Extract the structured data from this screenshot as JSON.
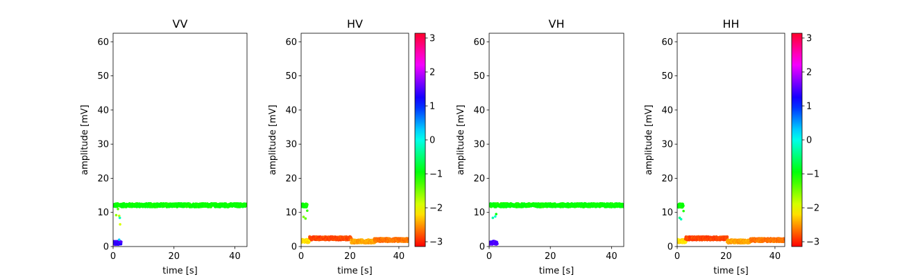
{
  "chart_data": [
    {
      "type": "scatter",
      "title": "VV",
      "xlabel": "time [s]",
      "ylabel": "amplitude [mV]",
      "xlim": [
        0,
        44
      ],
      "ylim": [
        0,
        62.5
      ],
      "xticks": [
        "0",
        "20",
        "40"
      ],
      "yticks": [
        "0",
        "10",
        "20",
        "30",
        "40",
        "50",
        "60"
      ],
      "colorbar": false,
      "segments": [
        {
          "x_start": 0.2,
          "x_end": 44,
          "amplitude": 12.1,
          "phase": -1.0
        },
        {
          "x_start": 0.2,
          "x_end": 2.6,
          "amplitude": 1.1,
          "phase": 1.4
        }
      ],
      "points": [
        {
          "x": 1.0,
          "y": 9.2,
          "phase": -1.6
        },
        {
          "x": 2.0,
          "y": 9.0,
          "phase": -1.8
        },
        {
          "x": 2.2,
          "y": 8.4,
          "phase": -0.2
        },
        {
          "x": 2.3,
          "y": 6.5,
          "phase": -1.9
        },
        {
          "x": 1.6,
          "y": 11.0,
          "phase": -1.3
        },
        {
          "x": 2.0,
          "y": 2.0,
          "phase": 0.3
        }
      ]
    },
    {
      "type": "scatter",
      "title": "HV",
      "xlabel": "time [s]",
      "ylabel": "amplitude [mV]",
      "xlim": [
        0,
        44
      ],
      "ylim": [
        0,
        62.5
      ],
      "xticks": [
        "0",
        "20",
        "40"
      ],
      "yticks": [
        "0",
        "10",
        "20",
        "30",
        "40",
        "50",
        "60"
      ],
      "colorbar": true,
      "segments": [
        {
          "x_start": 0.2,
          "x_end": 2.4,
          "amplitude": 12.0,
          "phase": -1.0
        },
        {
          "x_start": 0.2,
          "x_end": 3.5,
          "amplitude": 1.6,
          "phase": -2.2
        },
        {
          "x_start": 3.5,
          "x_end": 20.5,
          "amplitude": 2.4,
          "phase": -2.85
        },
        {
          "x_start": 20.5,
          "x_end": 30.0,
          "amplitude": 1.5,
          "phase": -2.45
        },
        {
          "x_start": 30.0,
          "x_end": 44,
          "amplitude": 1.9,
          "phase": -2.65
        }
      ],
      "points": [
        {
          "x": 1.0,
          "y": 8.7,
          "phase": -1.5
        },
        {
          "x": 1.8,
          "y": 8.2,
          "phase": -1.4
        },
        {
          "x": 2.5,
          "y": 10.5,
          "phase": -1.2
        }
      ]
    },
    {
      "type": "scatter",
      "title": "VH",
      "xlabel": "time [s]",
      "ylabel": "amplitude [mV]",
      "xlim": [
        0,
        44
      ],
      "ylim": [
        0,
        62.5
      ],
      "xticks": [
        "0",
        "20",
        "40"
      ],
      "yticks": [
        "0",
        "10",
        "20",
        "30",
        "40",
        "50",
        "60"
      ],
      "colorbar": false,
      "segments": [
        {
          "x_start": 0.2,
          "x_end": 44,
          "amplitude": 12.1,
          "phase": -1.0
        },
        {
          "x_start": 0.2,
          "x_end": 2.6,
          "amplitude": 1.1,
          "phase": 1.5
        }
      ],
      "points": [
        {
          "x": 1.2,
          "y": 8.4,
          "phase": -0.3
        },
        {
          "x": 2.0,
          "y": 8.8,
          "phase": -0.1
        },
        {
          "x": 2.3,
          "y": 9.5,
          "phase": -1.0
        }
      ]
    },
    {
      "type": "scatter",
      "title": "HH",
      "xlabel": "time [s]",
      "ylabel": "amplitude [mV]",
      "xlim": [
        0,
        44
      ],
      "ylim": [
        0,
        62.5
      ],
      "xticks": [
        "0",
        "20",
        "40"
      ],
      "yticks": [
        "0",
        "10",
        "20",
        "30",
        "40",
        "50",
        "60"
      ],
      "colorbar": true,
      "segments": [
        {
          "x_start": 0.2,
          "x_end": 2.4,
          "amplitude": 12.0,
          "phase": -1.0
        },
        {
          "x_start": 0.2,
          "x_end": 3.5,
          "amplitude": 1.6,
          "phase": -2.2
        },
        {
          "x_start": 3.5,
          "x_end": 20.5,
          "amplitude": 2.4,
          "phase": -2.85
        },
        {
          "x_start": 20.5,
          "x_end": 30.0,
          "amplitude": 1.5,
          "phase": -2.45
        },
        {
          "x_start": 30.0,
          "x_end": 44,
          "amplitude": 1.9,
          "phase": -2.65
        }
      ],
      "points": [
        {
          "x": 1.0,
          "y": 8.4,
          "phase": -0.4
        },
        {
          "x": 1.6,
          "y": 8.0,
          "phase": -0.2
        },
        {
          "x": 2.6,
          "y": 10.4,
          "phase": -1.1
        }
      ]
    }
  ],
  "colorbar": {
    "cmap": "hsv",
    "vmin": -3.14159,
    "vmax": 3.14159,
    "ticks": [
      "3",
      "2",
      "1",
      "0",
      "−1",
      "−2",
      "−3"
    ],
    "tick_values": [
      3,
      2,
      1,
      0,
      -1,
      -2,
      -3
    ]
  }
}
